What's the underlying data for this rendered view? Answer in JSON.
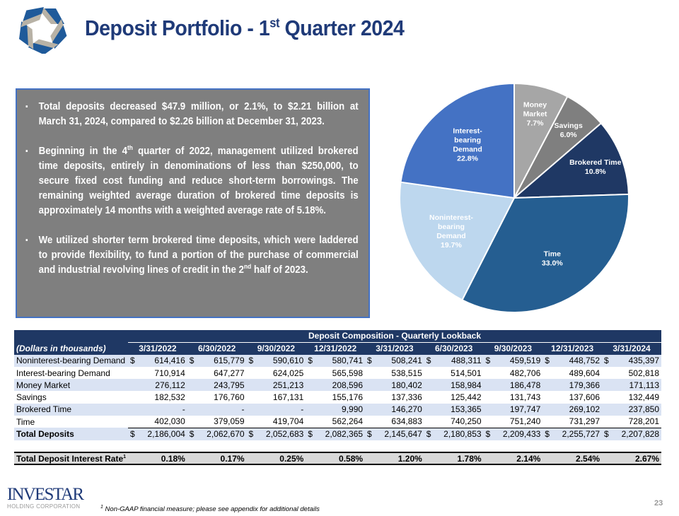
{
  "header": {
    "title_pre": "Deposit Portfolio - 1",
    "title_sup": "st",
    "title_post": " Quarter 2024"
  },
  "bullets": [
    {
      "text": "Total deposits decreased $47.9 million, or 2.1%, to $2.21 billion at March 31, 2024, compared to $2.26 billion at December 31, 2023."
    },
    {
      "pre": "Beginning in the 4",
      "sup": "th",
      "post": " quarter of 2022, management utilized brokered time deposits, entirely in denominations of less than $250,000, to secure fixed cost funding and reduce short-term borrowings. The remaining weighted average duration of brokered time deposits is approximately 14 months with a weighted average rate of 5.18%."
    },
    {
      "pre": "We utilized shorter term brokered time deposits, which were laddered to provide flexibility, to fund a portion of the purchase of commercial and industrial revolving lines of credit in the 2",
      "sup": "nd",
      "post": " half of 2023."
    }
  ],
  "chart_data": {
    "type": "pie",
    "start": "12 o'clock, clockwise",
    "slices": [
      {
        "label": [
          "Money",
          "Market"
        ],
        "value": 7.7,
        "text": "7.7%",
        "color": "#a6a6a6"
      },
      {
        "label": [
          "Savings"
        ],
        "value": 6.0,
        "text": "6.0%",
        "color": "#7f7f7f"
      },
      {
        "label": [
          "Brokered Time"
        ],
        "value": 10.8,
        "text": "10.8%",
        "color": "#1f3864"
      },
      {
        "label": [
          "Time"
        ],
        "value": 33.0,
        "text": "33.0%",
        "color": "#255e91"
      },
      {
        "label": [
          "Noninterest-",
          "bearing",
          "Demand"
        ],
        "value": 19.7,
        "text": "19.7%",
        "color": "#bdd7ee"
      },
      {
        "label": [
          "Interest-",
          "bearing",
          "Demand"
        ],
        "value": 22.8,
        "text": "22.8%",
        "color": "#4472c4"
      }
    ]
  },
  "table": {
    "caption": "Deposit Composition - Quarterly Lookback",
    "unit_label": "(Dollars in thousands)",
    "columns": [
      "3/31/2022",
      "6/30/2022",
      "9/30/2022",
      "12/31/2022",
      "3/31/2023",
      "6/30/2023",
      "9/30/2023",
      "12/31/2023",
      "3/31/2024"
    ],
    "rows": [
      {
        "label": "Noninterest-bearing Demand",
        "dollar": true,
        "values": [
          "614,416",
          "615,779",
          "590,610",
          "580,741",
          "508,241",
          "488,311",
          "459,519",
          "448,752",
          "435,397"
        ]
      },
      {
        "label": "Interest-bearing Demand",
        "values": [
          "710,914",
          "647,277",
          "624,025",
          "565,598",
          "538,515",
          "514,501",
          "482,706",
          "489,604",
          "502,818"
        ]
      },
      {
        "label": "Money Market",
        "values": [
          "276,112",
          "243,795",
          "251,213",
          "208,596",
          "180,402",
          "158,984",
          "186,478",
          "179,366",
          "171,113"
        ]
      },
      {
        "label": "Savings",
        "values": [
          "182,532",
          "176,760",
          "167,131",
          "155,176",
          "137,336",
          "125,442",
          "131,743",
          "137,606",
          "132,449"
        ]
      },
      {
        "label": "Brokered Time",
        "values": [
          "-",
          "-",
          "-",
          "9,990",
          "146,270",
          "153,365",
          "197,747",
          "269,102",
          "237,850"
        ]
      },
      {
        "label": "Time",
        "values": [
          "402,030",
          "379,059",
          "419,704",
          "562,264",
          "634,883",
          "740,250",
          "751,240",
          "731,297",
          "728,201"
        ]
      }
    ],
    "total": {
      "label": "Total Deposits",
      "values": [
        "2,186,004",
        "2,062,670",
        "2,052,683",
        "2,082,365",
        "2,145,647",
        "2,180,853",
        "2,209,433",
        "2,255,727",
        "2,207,828"
      ]
    },
    "rate": {
      "label": "Total Deposit Interest Rate",
      "sup": "1",
      "values": [
        "0.18%",
        "0.17%",
        "0.25%",
        "0.58%",
        "1.20%",
        "1.78%",
        "2.14%",
        "2.54%",
        "2.67%"
      ]
    },
    "dollar_sign": "$"
  },
  "brand": {
    "name": "INVESTAR",
    "sub": "HOLDING CORPORATION"
  },
  "footnote": {
    "sup": "1",
    "text": " Non-GAAP financial measure;  please  see  appendix  for additional  details"
  },
  "page_number": "23"
}
